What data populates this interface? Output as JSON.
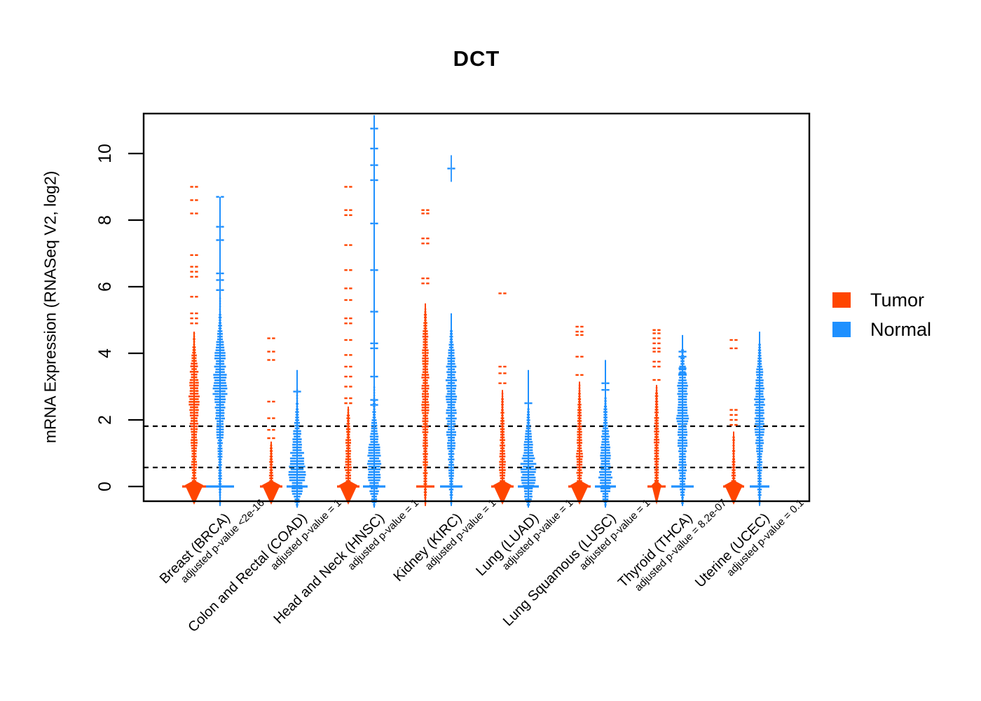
{
  "chart_data": {
    "type": "strip-violin",
    "title": "DCT",
    "ylabel": "mRNA Expression (RNASeq V2, log2)",
    "yticks": [
      0,
      2,
      4,
      6,
      8,
      10
    ],
    "ylim": [
      -0.62,
      11.2
    ],
    "grid": false,
    "reference_lines": {
      "values": [
        1.81,
        0.57
      ],
      "style": "dashed",
      "color": "#000000"
    },
    "legend_position": "right",
    "legend": [
      {
        "label": "Tumor",
        "color": "#FF4500"
      },
      {
        "label": "Normal",
        "color": "#1E90FF"
      }
    ],
    "groups": [
      {
        "label": "Breast (BRCA)",
        "pvalue_label": "adjusted p-value <2e-16",
        "tumor": {
          "spine_top": 4.65,
          "diamond": 13,
          "crossbar": 17,
          "profile": [
            [
              0,
              3
            ],
            [
              0.5,
              3.5
            ],
            [
              1.0,
              4
            ],
            [
              1.5,
              4.5
            ],
            [
              2.0,
              6
            ],
            [
              2.5,
              7
            ],
            [
              3.0,
              6.5
            ],
            [
              3.5,
              5
            ],
            [
              3.9,
              3.5
            ],
            [
              4.2,
              2
            ],
            [
              4.65,
              1
            ]
          ],
          "outliers": [
            9.0,
            8.6,
            8.2,
            6.95,
            6.6,
            6.45,
            6.3,
            5.7,
            5.2,
            5.05,
            4.9
          ]
        },
        "normal": {
          "spine_top": 8.7,
          "diamond": 0,
          "crossbar": 20,
          "profile": [
            [
              -0.5,
              1
            ],
            [
              0,
              2
            ],
            [
              0.6,
              2.5
            ],
            [
              1.2,
              3.5
            ],
            [
              1.8,
              5
            ],
            [
              2.3,
              7
            ],
            [
              2.8,
              9
            ],
            [
              3.3,
              9
            ],
            [
              3.8,
              7.5
            ],
            [
              4.2,
              5.5
            ],
            [
              4.6,
              3.5
            ],
            [
              5.0,
              2
            ],
            [
              5.4,
              1.3
            ],
            [
              5.7,
              0.8
            ]
          ],
          "outliers": [
            8.7,
            7.8,
            7.4,
            6.4,
            6.2,
            5.9
          ]
        }
      },
      {
        "label": "Colon and Rectal (COAD)",
        "pvalue_label": "adjusted p-value = 1",
        "tumor": {
          "spine_top": 1.35,
          "diamond": 13,
          "crossbar": 16,
          "profile": [
            [
              0,
              2.5
            ],
            [
              0.35,
              3
            ],
            [
              0.7,
              2.5
            ],
            [
              1.0,
              2
            ],
            [
              1.3,
              1.4
            ]
          ],
          "outliers": [
            4.45,
            4.05,
            3.8,
            2.55,
            2.05,
            1.7,
            1.45
          ]
        },
        "normal": {
          "spine_top": 3.5,
          "diamond": 0,
          "crossbar": 15,
          "profile": [
            [
              -0.55,
              2
            ],
            [
              -0.25,
              6
            ],
            [
              0,
              9
            ],
            [
              0.35,
              10.5
            ],
            [
              0.7,
              10
            ],
            [
              1.1,
              8.5
            ],
            [
              1.4,
              6.5
            ],
            [
              1.7,
              4.5
            ],
            [
              2.0,
              3
            ],
            [
              2.4,
              1.8
            ],
            [
              2.9,
              1
            ]
          ],
          "outliers": [
            2.85
          ]
        }
      },
      {
        "label": "Head and Neck (HNSC)",
        "pvalue_label": "adjusted p-value = 1",
        "tumor": {
          "spine_top": 2.4,
          "diamond": 13,
          "crossbar": 16,
          "profile": [
            [
              0,
              3
            ],
            [
              0.4,
              4
            ],
            [
              0.8,
              4
            ],
            [
              1.2,
              3.5
            ],
            [
              1.6,
              3
            ],
            [
              2.0,
              2.3
            ],
            [
              2.35,
              1.4
            ]
          ],
          "outliers": [
            9.0,
            8.3,
            8.15,
            7.25,
            6.5,
            5.95,
            5.6,
            5.05,
            4.9,
            4.4,
            3.95,
            3.6,
            3.3,
            3.0,
            2.65,
            2.5
          ]
        },
        "normal": {
          "spine_top": 11.15,
          "diamond": 0,
          "crossbar": 16,
          "profile": [
            [
              -0.55,
              2
            ],
            [
              -0.25,
              5
            ],
            [
              0,
              6.5
            ],
            [
              0.35,
              8.5
            ],
            [
              0.7,
              9
            ],
            [
              1.0,
              8
            ],
            [
              1.3,
              6.5
            ],
            [
              1.6,
              5
            ],
            [
              1.9,
              3.5
            ],
            [
              2.2,
              2.4
            ],
            [
              2.6,
              1.6
            ],
            [
              3.0,
              1
            ]
          ],
          "outliers": [
            10.75,
            10.15,
            9.65,
            9.2,
            7.9,
            6.5,
            5.25,
            4.3,
            4.15,
            3.3,
            2.6,
            2.45
          ]
        }
      },
      {
        "label": "Kidney (KIRC)",
        "pvalue_label": "adjusted p-value = 1",
        "tumor": {
          "spine_top": 5.5,
          "diamond": 0,
          "crossbar": 13,
          "profile": [
            [
              -0.5,
              1
            ],
            [
              0,
              2.5
            ],
            [
              0.5,
              3
            ],
            [
              1.0,
              3.5
            ],
            [
              1.5,
              4
            ],
            [
              2.0,
              4.5
            ],
            [
              2.5,
              5
            ],
            [
              3.0,
              5
            ],
            [
              3.5,
              4.5
            ],
            [
              4.0,
              4
            ],
            [
              4.5,
              3.5
            ],
            [
              5.0,
              2.3
            ],
            [
              5.4,
              1.2
            ]
          ],
          "outliers": [
            8.3,
            8.2,
            7.45,
            7.3,
            6.25,
            6.1
          ]
        },
        "normal": {
          "spine_top": 5.2,
          "diamond": 0,
          "crossbar": 16,
          "profile": [
            [
              -0.5,
              1.5
            ],
            [
              0,
              3
            ],
            [
              0.5,
              3.5
            ],
            [
              1.0,
              4.5
            ],
            [
              1.5,
              6
            ],
            [
              2.0,
              6.5
            ],
            [
              2.5,
              7
            ],
            [
              3.0,
              7
            ],
            [
              3.5,
              6.5
            ],
            [
              4.0,
              5
            ],
            [
              4.3,
              3
            ],
            [
              4.7,
              1.6
            ]
          ],
          "outliers": [
            9.55
          ],
          "isolated": [
            9.55
          ]
        }
      },
      {
        "label": "Lung (LUAD)",
        "pvalue_label": "adjusted p-value = 1",
        "tumor": {
          "spine_top": 2.9,
          "diamond": 13,
          "crossbar": 16,
          "profile": [
            [
              0,
              3
            ],
            [
              0.4,
              4
            ],
            [
              0.8,
              4
            ],
            [
              1.2,
              3.5
            ],
            [
              1.6,
              3
            ],
            [
              2.0,
              2.5
            ],
            [
              2.4,
              1.9
            ],
            [
              2.85,
              1.2
            ]
          ],
          "outliers": [
            5.8,
            3.6,
            3.4,
            3.1
          ]
        },
        "normal": {
          "spine_top": 3.5,
          "diamond": 0,
          "crossbar": 15,
          "profile": [
            [
              -0.55,
              2
            ],
            [
              -0.25,
              6
            ],
            [
              0,
              9
            ],
            [
              0.3,
              10.5
            ],
            [
              0.6,
              10
            ],
            [
              0.9,
              8
            ],
            [
              1.2,
              6
            ],
            [
              1.5,
              4.5
            ],
            [
              1.8,
              3
            ],
            [
              2.1,
              2
            ],
            [
              2.4,
              1.2
            ]
          ],
          "outliers": [
            2.5
          ]
        }
      },
      {
        "label": "Lung Squamous (LUSC)",
        "pvalue_label": "adjusted p-value = 1",
        "tumor": {
          "spine_top": 3.15,
          "diamond": 13,
          "crossbar": 16,
          "profile": [
            [
              0,
              3
            ],
            [
              0.4,
              4
            ],
            [
              0.8,
              4.5
            ],
            [
              1.2,
              4
            ],
            [
              1.6,
              3.5
            ],
            [
              2.0,
              3
            ],
            [
              2.4,
              2.4
            ],
            [
              2.8,
              1.5
            ],
            [
              3.1,
              0.9
            ]
          ],
          "outliers": [
            4.8,
            4.65,
            4.55,
            3.9,
            3.35
          ]
        },
        "normal": {
          "spine_top": 3.8,
          "diamond": 0,
          "crossbar": 15,
          "profile": [
            [
              -0.55,
              2
            ],
            [
              -0.25,
              5
            ],
            [
              0,
              7
            ],
            [
              0.3,
              8.5
            ],
            [
              0.6,
              8.5
            ],
            [
              0.9,
              7.5
            ],
            [
              1.2,
              6.5
            ],
            [
              1.5,
              5.5
            ],
            [
              1.8,
              4
            ],
            [
              2.1,
              3
            ],
            [
              2.4,
              2
            ],
            [
              2.7,
              1.2
            ]
          ],
          "outliers": [
            3.1,
            2.9
          ]
        }
      },
      {
        "label": "Thyroid (THCA)",
        "pvalue_label": "adjusted p-value = 8.2e-07",
        "tumor": {
          "spine_top": 3.05,
          "diamond": 7,
          "crossbar": 13,
          "profile": [
            [
              -0.4,
              1
            ],
            [
              0,
              2.5
            ],
            [
              0.4,
              3
            ],
            [
              0.8,
              3.5
            ],
            [
              1.2,
              3.5
            ],
            [
              1.6,
              3.3
            ],
            [
              2.0,
              3
            ],
            [
              2.4,
              2.4
            ],
            [
              2.8,
              1.8
            ],
            [
              3.0,
              1.2
            ]
          ],
          "outliers": [
            4.7,
            4.6,
            4.45,
            4.3,
            4.15,
            4.05,
            3.75,
            3.6,
            3.2
          ]
        },
        "normal": {
          "spine_top": 4.55,
          "diamond": 0,
          "crossbar": 16,
          "profile": [
            [
              -0.5,
              1.5
            ],
            [
              0,
              4
            ],
            [
              0.4,
              5
            ],
            [
              0.8,
              5.5
            ],
            [
              1.2,
              6
            ],
            [
              1.6,
              7
            ],
            [
              2.0,
              8
            ],
            [
              2.4,
              8
            ],
            [
              2.8,
              7.5
            ],
            [
              3.2,
              6
            ],
            [
              3.6,
              4
            ],
            [
              3.9,
              2.5
            ],
            [
              4.15,
              1.4
            ]
          ],
          "outliers": [
            4.05,
            3.9,
            3.55,
            3.4
          ]
        }
      },
      {
        "label": "Uterine (UCEC)",
        "pvalue_label": "adjusted p-value = 0.1",
        "tumor": {
          "spine_top": 1.65,
          "diamond": 13,
          "crossbar": 15,
          "profile": [
            [
              0,
              2.5
            ],
            [
              0.3,
              3
            ],
            [
              0.6,
              2.5
            ],
            [
              0.9,
              2
            ],
            [
              1.2,
              1.8
            ],
            [
              1.55,
              1.2
            ]
          ],
          "outliers": [
            4.4,
            4.15,
            2.3,
            2.15,
            2.0,
            1.85
          ]
        },
        "normal": {
          "spine_top": 4.65,
          "diamond": 0,
          "crossbar": 14,
          "profile": [
            [
              -0.5,
              1.5
            ],
            [
              0,
              3
            ],
            [
              0.4,
              3.5
            ],
            [
              0.8,
              4
            ],
            [
              1.2,
              5
            ],
            [
              1.6,
              6
            ],
            [
              2.0,
              7
            ],
            [
              2.4,
              7
            ],
            [
              2.8,
              6.5
            ],
            [
              3.2,
              5.5
            ],
            [
              3.6,
              4
            ],
            [
              4.0,
              2.5
            ],
            [
              4.3,
              1.4
            ]
          ],
          "outliers": []
        }
      }
    ]
  }
}
